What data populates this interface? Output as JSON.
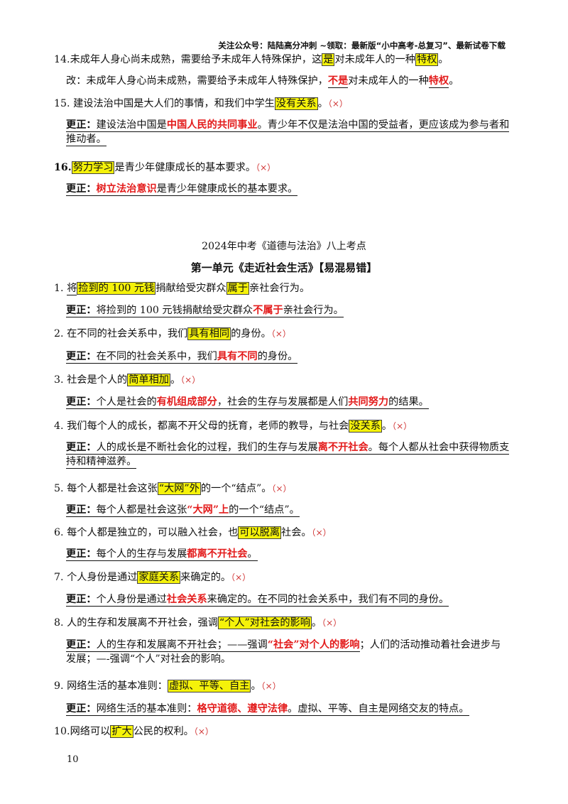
{
  "header": "关注公众号：陆陆高分冲刺 ~领取：最新版“小中高考-总复习”、最新试卷下载",
  "page_number": "10",
  "title": "2024年中考《道德与法治》八上考点",
  "subtitle": "第一单元《走近社会生活》【易混易错】",
  "mark": "（×）",
  "correction_label": "更正：",
  "items_top": {
    "i14": {
      "num": "14.",
      "t1": "未成年人身心尚未成熟，需要给予未成年人特殊保护，这",
      "h1": "是",
      "t2": "对未成年人的一种",
      "h2": "特权",
      "t3": "。"
    },
    "i14c": {
      "t1": "改：未成年人身心尚未成熟，需要给予未成年人特殊保护，",
      "r1": "不是",
      "t2": "对未成年人的一种",
      "r2": "特权",
      "t3": "。"
    },
    "i15": {
      "num": "15.",
      "t1": "建设法治中国是大人们的事情，和我们中学生",
      "h1": "没有关系",
      "t2": "。"
    },
    "i15c": {
      "t1": "建设法治中国是",
      "r1": "中国人民的共同事业",
      "t2": "。青少年不仅是法治中国的受益者，更应该成为参与者和推动者。"
    },
    "i16": {
      "num": "16.",
      "h1": "努力学习",
      "t1": "是青少年健康成长的基本要求。"
    },
    "i16c": {
      "r1": "树立法治意识",
      "t1": "是青少年健康成长的基本要求。"
    }
  },
  "items": {
    "q1": {
      "num": "1.",
      "t1": "将",
      "h1": "捡到的 100 元钱",
      "t2": "捐献给受灾群众",
      "h2": "属于",
      "t3": "亲社会行为。"
    },
    "q1c": {
      "t1": "将捡到的 100 元钱捐献给受灾群众",
      "r1": "不属于",
      "t2": "亲社会行为。"
    },
    "q2": {
      "num": "2.",
      "t1": "在不同的社会关系中，我们",
      "h1": "具有相同",
      "t2": "的身份。"
    },
    "q2c": {
      "t1": "在不同的社会关系中，我们",
      "r1": "具有不同",
      "t2": "的身份。"
    },
    "q3": {
      "num": "3.",
      "t1": "社会是个人的",
      "h1": "简单相加",
      "t2": "。"
    },
    "q3c": {
      "t1": "个人是社会的",
      "r1": "有机组成部分",
      "t2": "，社会的生存与发展都是人们",
      "r2": "共同努力",
      "t3": "的结果。"
    },
    "q4": {
      "num": "4.",
      "t1": "我们每个人的成长，都离不开父母的抚育，老师的教导，与社会",
      "h1": "没关系",
      "t2": "。"
    },
    "q4c": {
      "t1": "人的成长是不断社会化的过程，我们的生存与发展",
      "r1": "离不开社会",
      "t2": "。每个人都从社会中获得物质支持和精神滋养。"
    },
    "q5": {
      "num": "5.",
      "t1": "每个人都是社会这张",
      "h1": "“大网”外",
      "t2": "的一个“结点”。"
    },
    "q5c": {
      "t1": "每个人都是社会这张",
      "r1": "“大网”上",
      "t2": "的一个“结点”。"
    },
    "q6": {
      "num": "6.",
      "t1": "每个人都是独立的，可以融入社会，也",
      "h1": "可以脱离",
      "t2": "社会。"
    },
    "q6c": {
      "t1": "每个人的生存与发展",
      "r1": "都离不开社会",
      "t2": "。"
    },
    "q7": {
      "num": "7.",
      "t1": "个人身份是通过",
      "h1": "家庭关系",
      "t2": "来确定的。"
    },
    "q7c": {
      "t1": "个人身份是通过",
      "r1": "社会关系",
      "t2": "来确定的。在不同的社会关系中，我们有不同的身份。"
    },
    "q8": {
      "num": "8.",
      "t1": "人的生存和发展离不开社会，强调",
      "h1": "“个人”对社会的影响",
      "t2": "。"
    },
    "q8c": {
      "t1": "人的生存和发展离不开社会；——强调",
      "r1": "“社会”对个人的影响",
      "t2": "；人们的活动推动着社会进步与发展；—-强调“个人”对社会的影响。"
    },
    "q9": {
      "num": "9.",
      "t1": "网络生活的基本准则：",
      "h1": "虚拟、平等、自主",
      "t2": "。"
    },
    "q9c": {
      "t1": "网络生活的基本准则：",
      "r1": "格守道德、遵守法律",
      "t2": "。虚拟、平等、自主是网络交友的特点。"
    },
    "q10": {
      "num": "10.",
      "t1": "网络可以",
      "h1": "扩大",
      "t2": "公民的权利。"
    }
  }
}
